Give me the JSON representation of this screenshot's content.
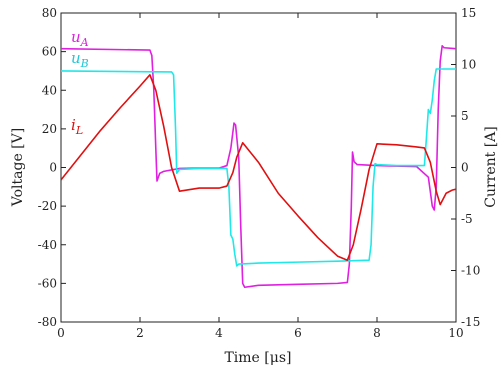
{
  "chart_data": {
    "type": "line",
    "title": "",
    "xlabel": "Time [μs]",
    "ylabel_left": "Voltage [V]",
    "ylabel_right": "Current [A]",
    "xlim": [
      0,
      10
    ],
    "ylim_left": [
      -80,
      80
    ],
    "ylim_right": [
      -15,
      15
    ],
    "x_ticks": [
      "0",
      "2",
      "4",
      "6",
      "8",
      "10"
    ],
    "y_left_ticks": [
      "-80",
      "-60",
      "-40",
      "-20",
      "0",
      "20",
      "40",
      "60",
      "80"
    ],
    "y_right_ticks": [
      "-15",
      "-10",
      "-5",
      "0",
      "5",
      "10",
      "15"
    ],
    "grid": false,
    "colors": {
      "uA": "#e020e0",
      "uB": "#20e8e8",
      "iL": "#e01010"
    },
    "series": [
      {
        "name": "u_A",
        "label_main": "u",
        "label_sub": "A",
        "axis": "left",
        "points": [
          [
            0,
            61.5
          ],
          [
            2.25,
            60.8
          ],
          [
            2.3,
            58
          ],
          [
            2.35,
            40
          ],
          [
            2.4,
            10
          ],
          [
            2.43,
            -7
          ],
          [
            2.5,
            -3
          ],
          [
            2.6,
            -2
          ],
          [
            3.0,
            -0.5
          ],
          [
            3.5,
            -0.3
          ],
          [
            4.0,
            -0.3
          ],
          [
            4.2,
            1
          ],
          [
            4.3,
            10
          ],
          [
            4.38,
            23
          ],
          [
            4.42,
            22
          ],
          [
            4.5,
            5
          ],
          [
            4.55,
            -30
          ],
          [
            4.6,
            -60
          ],
          [
            4.65,
            -62
          ],
          [
            5.0,
            -61
          ],
          [
            6.0,
            -60.5
          ],
          [
            7.0,
            -60
          ],
          [
            7.25,
            -59.5
          ],
          [
            7.3,
            -50
          ],
          [
            7.35,
            -20
          ],
          [
            7.38,
            8
          ],
          [
            7.42,
            3
          ],
          [
            7.5,
            1.5
          ],
          [
            8.0,
            1
          ],
          [
            9.0,
            0.5
          ],
          [
            9.3,
            -5
          ],
          [
            9.4,
            -20
          ],
          [
            9.45,
            -22
          ],
          [
            9.5,
            -10
          ],
          [
            9.55,
            30
          ],
          [
            9.6,
            55
          ],
          [
            9.65,
            63
          ],
          [
            9.7,
            62
          ],
          [
            10,
            61.5
          ]
        ]
      },
      {
        "name": "u_B",
        "label_main": "u",
        "label_sub": "B",
        "axis": "left",
        "points": [
          [
            0,
            50
          ],
          [
            1.0,
            49.8
          ],
          [
            2.0,
            49.6
          ],
          [
            2.8,
            49.5
          ],
          [
            2.85,
            48
          ],
          [
            2.9,
            20
          ],
          [
            2.93,
            -3
          ],
          [
            3.0,
            -1
          ],
          [
            3.5,
            -0.5
          ],
          [
            4.2,
            -0.5
          ],
          [
            4.25,
            -10
          ],
          [
            4.3,
            -35
          ],
          [
            4.35,
            -37
          ],
          [
            4.4,
            -45
          ],
          [
            4.45,
            -51
          ],
          [
            4.5,
            -50
          ],
          [
            5.0,
            -49.5
          ],
          [
            6.0,
            -49
          ],
          [
            7.0,
            -48.5
          ],
          [
            7.8,
            -48
          ],
          [
            7.85,
            -40
          ],
          [
            7.9,
            -10
          ],
          [
            7.95,
            2
          ],
          [
            8.0,
            1.5
          ],
          [
            8.5,
            1
          ],
          [
            9.2,
            1
          ],
          [
            9.25,
            15
          ],
          [
            9.3,
            30
          ],
          [
            9.35,
            28
          ],
          [
            9.4,
            35
          ],
          [
            9.45,
            45
          ],
          [
            9.5,
            51
          ],
          [
            10,
            51
          ]
        ]
      },
      {
        "name": "i_L",
        "label_main": "i",
        "label_sub": "L",
        "axis": "right",
        "points": [
          [
            0,
            -1.2
          ],
          [
            0.5,
            1.2
          ],
          [
            1.0,
            3.6
          ],
          [
            1.5,
            5.8
          ],
          [
            2.0,
            7.9
          ],
          [
            2.25,
            9.0
          ],
          [
            2.4,
            7.5
          ],
          [
            2.6,
            4.0
          ],
          [
            2.8,
            0.0
          ],
          [
            3.0,
            -2.3
          ],
          [
            3.5,
            -2.0
          ],
          [
            4.0,
            -2.0
          ],
          [
            4.2,
            -1.8
          ],
          [
            4.35,
            -0.5
          ],
          [
            4.45,
            1.0
          ],
          [
            4.6,
            2.4
          ],
          [
            5.0,
            0.5
          ],
          [
            5.5,
            -2.5
          ],
          [
            6.0,
            -4.7
          ],
          [
            6.5,
            -6.8
          ],
          [
            7.0,
            -8.6
          ],
          [
            7.25,
            -9.0
          ],
          [
            7.4,
            -7.5
          ],
          [
            7.6,
            -4.0
          ],
          [
            7.8,
            -0.2
          ],
          [
            8.0,
            2.3
          ],
          [
            8.5,
            2.2
          ],
          [
            9.0,
            2.0
          ],
          [
            9.2,
            1.9
          ],
          [
            9.35,
            0.5
          ],
          [
            9.5,
            -2.3
          ],
          [
            9.6,
            -3.6
          ],
          [
            9.75,
            -2.5
          ],
          [
            9.9,
            -2.2
          ],
          [
            10,
            -2.1
          ]
        ]
      }
    ]
  }
}
